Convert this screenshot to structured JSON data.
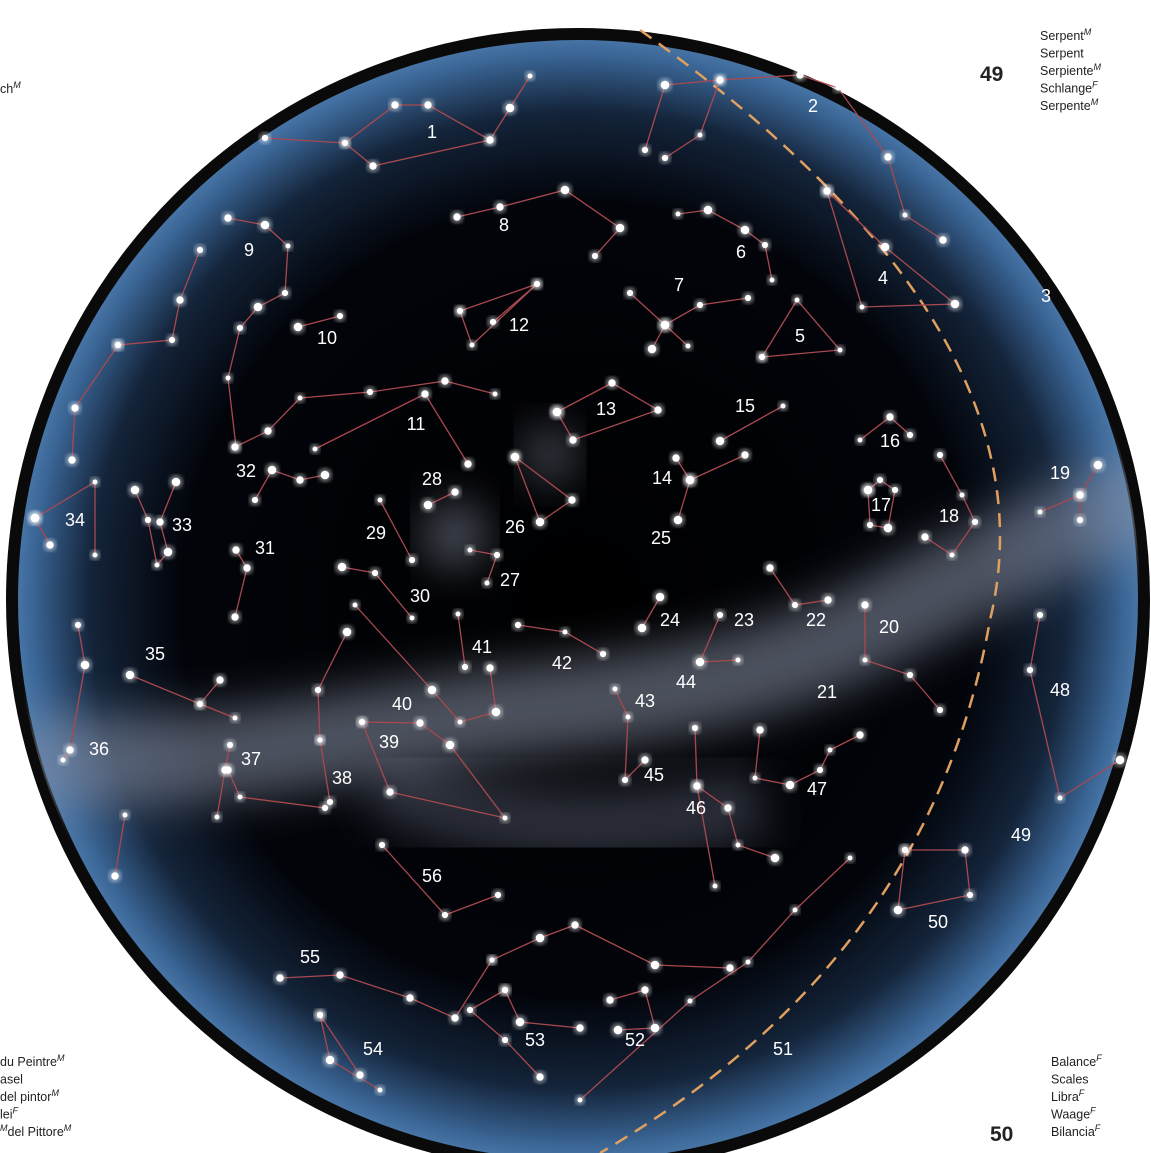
{
  "constellation_labels": [
    "1",
    "2",
    "3",
    "4",
    "5",
    "6",
    "7",
    "8",
    "9",
    "10",
    "11",
    "12",
    "13",
    "14",
    "15",
    "16",
    "17",
    "18",
    "19",
    "20",
    "21",
    "22",
    "23",
    "24",
    "25",
    "26",
    "27",
    "28",
    "29",
    "30",
    "31",
    "32",
    "33",
    "34",
    "35",
    "36",
    "37",
    "38",
    "39",
    "40",
    "41",
    "42",
    "43",
    "44",
    "45",
    "46",
    "47",
    "48",
    "49",
    "50",
    "51",
    "52",
    "53",
    "54",
    "55",
    "56"
  ],
  "top_right": {
    "number": "49",
    "names": [
      {
        "text": "Serpent",
        "gender": "M"
      },
      {
        "text": "Serpent"
      },
      {
        "text": "Serpiente",
        "gender": "M"
      },
      {
        "text": "Schlange",
        "gender": "F"
      },
      {
        "text": "Serpente",
        "gender": "M"
      }
    ]
  },
  "bottom_right": {
    "number": "50",
    "names": [
      {
        "text": "Balance",
        "gender": "F"
      },
      {
        "text": "Scales"
      },
      {
        "text": "Libra",
        "gender": "F"
      },
      {
        "text": "Waage",
        "gender": "F"
      },
      {
        "text": "Bilancia",
        "gender": "F"
      }
    ]
  },
  "top_left": {
    "names": [
      {
        "text": "ch",
        "gender": "M"
      }
    ]
  },
  "bottom_left": {
    "names": [
      {
        "text": "du Peintre",
        "gender": "M"
      },
      {
        "text": "asel"
      },
      {
        "text": "del pintor",
        "gender": "M"
      },
      {
        "text": "lei",
        "gender": "F"
      },
      {
        "lead": "M",
        "text": "del Pittore",
        "gender": "M"
      }
    ]
  }
}
